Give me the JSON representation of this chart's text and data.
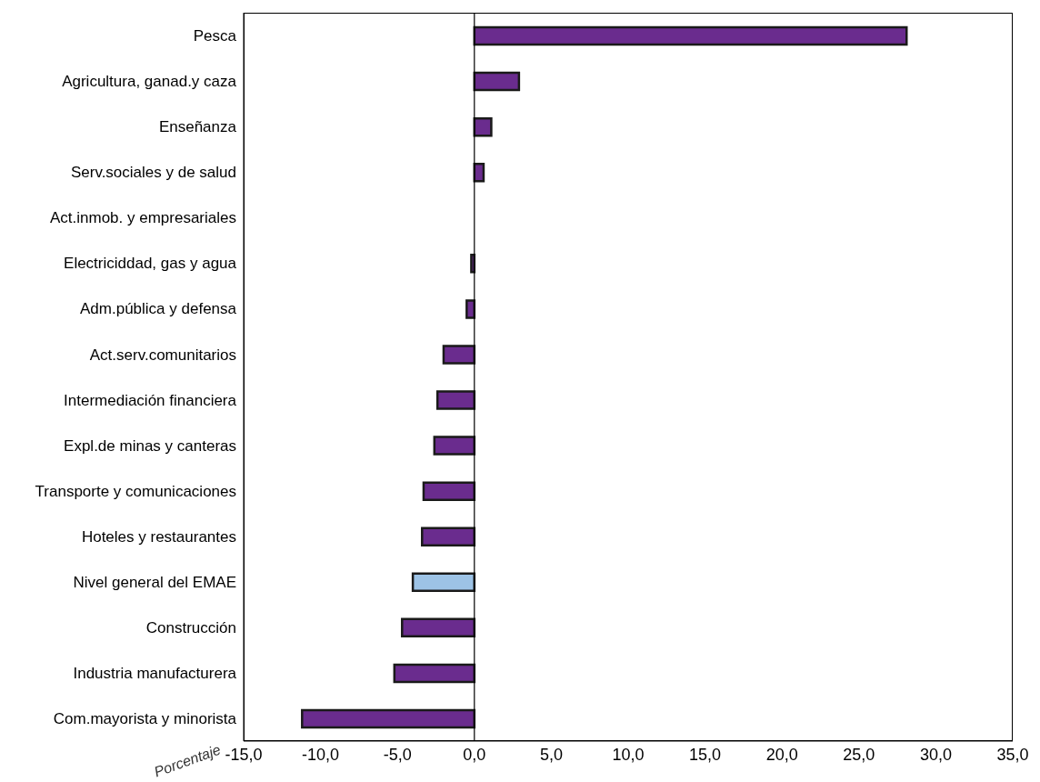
{
  "chart_data": {
    "type": "bar",
    "orientation": "horizontal",
    "xlabel": "Porcentaje",
    "categories": [
      "Pesca",
      "Agricultura, ganad.y caza",
      "Enseñanza",
      "Serv.sociales y de salud",
      "Act.inmob. y empresariales",
      "Electriciddad, gas y agua",
      "Adm.pública y defensa",
      "Act.serv.comunitarios",
      "Intermediación financiera",
      "Expl.de minas y canteras",
      "Transporte y comunicaciones",
      "Hoteles y restaurantes",
      "Nivel general del EMAE",
      "Construcción",
      "Industria manufacturera",
      "Com.mayorista y minorista"
    ],
    "values": [
      28.1,
      2.9,
      1.1,
      0.6,
      0,
      -0.2,
      -0.5,
      -2.0,
      -2.4,
      -2.6,
      -3.3,
      -3.4,
      -4.0,
      -4.7,
      -5.2,
      -11.2
    ],
    "colors": [
      "#6a2c8e",
      "#6a2c8e",
      "#6a2c8e",
      "#6a2c8e",
      "#6a2c8e",
      "#6a2c8e",
      "#6a2c8e",
      "#6a2c8e",
      "#6a2c8e",
      "#6a2c8e",
      "#6a2c8e",
      "#6a2c8e",
      "#9dc3e6",
      "#6a2c8e",
      "#6a2c8e",
      "#6a2c8e"
    ],
    "xlim": [
      -15,
      35
    ],
    "xticks": [
      {
        "value": -15,
        "label": "-15,0"
      },
      {
        "value": -10,
        "label": "-10,0"
      },
      {
        "value": -5,
        "label": "-5,0"
      },
      {
        "value": 0,
        "label": "0,0"
      },
      {
        "value": 5,
        "label": "5,0"
      },
      {
        "value": 10,
        "label": "10,0"
      },
      {
        "value": 15,
        "label": "15,0"
      },
      {
        "value": 20,
        "label": "20,0"
      },
      {
        "value": 25,
        "label": "25,0"
      },
      {
        "value": 30,
        "label": "30,0"
      },
      {
        "value": 35,
        "label": "35,0"
      }
    ],
    "ref_lines": [
      {
        "axis": "x",
        "value": 0,
        "color": "#000000"
      }
    ],
    "grid": false
  }
}
